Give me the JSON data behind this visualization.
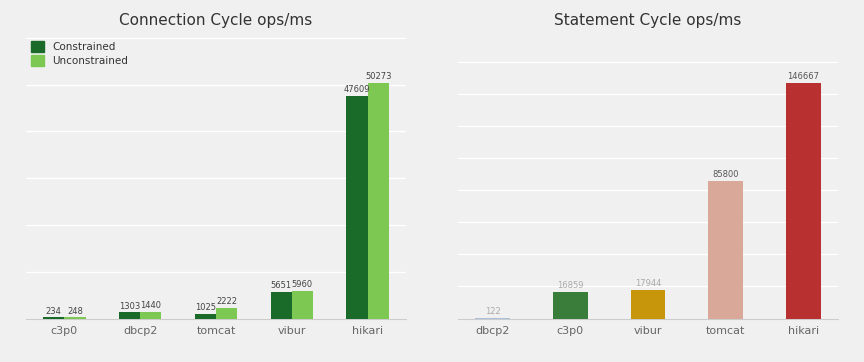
{
  "chart1": {
    "title": "Connection Cycle ops/ms",
    "categories": [
      "c3p0",
      "dbcp2",
      "tomcat",
      "vibur",
      "hikari"
    ],
    "constrained": [
      234,
      1303,
      1025,
      5651,
      47609
    ],
    "unconstrained": [
      248,
      1440,
      2222,
      5960,
      50273
    ],
    "color_constrained": "#1a6b2a",
    "color_unconstrained": "#7dc853",
    "legend_labels": [
      "Constrained",
      "Unconstrained"
    ]
  },
  "chart2": {
    "title": "Statement Cycle ops/ms",
    "categories": [
      "dbcp2",
      "c3p0",
      "vibur",
      "tomcat",
      "hikari"
    ],
    "values": [
      122,
      16859,
      17944,
      85800,
      146667
    ],
    "colors": [
      "#a8c0d8",
      "#3a7d3a",
      "#c8960a",
      "#d9a898",
      "#b83030"
    ]
  },
  "bg_color": "#f0f0f0"
}
